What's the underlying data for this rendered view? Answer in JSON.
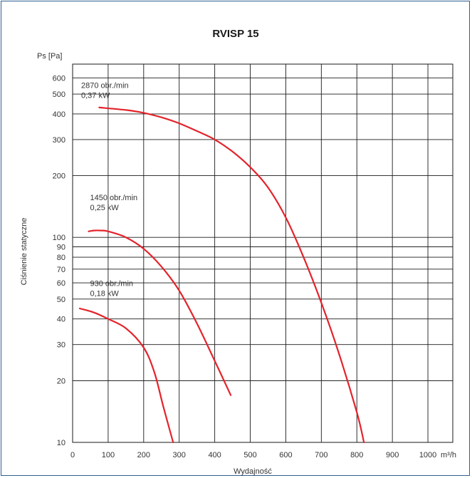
{
  "chart_data": {
    "type": "line",
    "title": "RVISP 15",
    "xlabel": "Wydajność",
    "ylabel": "Ciśnienie statyczne",
    "y_unit_label": "Ps [Pa]",
    "x_unit_label": "m³/h",
    "x_scale": "linear",
    "y_scale": "log",
    "xlim": [
      0,
      1070
    ],
    "ylim": [
      10,
      700
    ],
    "grid": true,
    "line_color": "#e3242b",
    "grid_color": "#1a1a1a",
    "x_ticks": [
      {
        "v": 0,
        "label": "0"
      },
      {
        "v": 100,
        "label": "100"
      },
      {
        "v": 200,
        "label": "200"
      },
      {
        "v": 300,
        "label": "300"
      },
      {
        "v": 400,
        "label": "400"
      },
      {
        "v": 500,
        "label": "500"
      },
      {
        "v": 600,
        "label": "600"
      },
      {
        "v": 700,
        "label": "700"
      },
      {
        "v": 800,
        "label": "800"
      },
      {
        "v": 900,
        "label": "900"
      },
      {
        "v": 1000,
        "label": "1000"
      }
    ],
    "y_ticks": [
      {
        "v": 10,
        "label": "10"
      },
      {
        "v": 20,
        "label": "20"
      },
      {
        "v": 30,
        "label": "30"
      },
      {
        "v": 40,
        "label": "40"
      },
      {
        "v": 50,
        "label": "50"
      },
      {
        "v": 60,
        "label": "60"
      },
      {
        "v": 70,
        "label": "70"
      },
      {
        "v": 80,
        "label": "80"
      },
      {
        "v": 90,
        "label": "90"
      },
      {
        "v": 100,
        "label": "100"
      },
      {
        "v": 200,
        "label": "200"
      },
      {
        "v": 300,
        "label": "300"
      },
      {
        "v": 400,
        "label": "400"
      },
      {
        "v": 500,
        "label": "500"
      },
      {
        "v": 600,
        "label": "600"
      }
    ],
    "series": [
      {
        "label_line1": "2870 obr./min",
        "label_line2": "0,37 kW",
        "label_at": [
          0,
          535
        ],
        "x": [
          75,
          150,
          200,
          250,
          300,
          350,
          400,
          450,
          500,
          550,
          600,
          650,
          700,
          750,
          800,
          820
        ],
        "y": [
          430,
          418,
          405,
          385,
          360,
          330,
          300,
          262,
          220,
          175,
          125,
          80,
          48,
          27,
          14,
          10
        ]
      },
      {
        "label_line1": "1450 obr./min",
        "label_line2": "0,25 kW",
        "label_at": [
          25,
          152
        ],
        "x": [
          45,
          60,
          80,
          100,
          150,
          200,
          250,
          300,
          350,
          400,
          445
        ],
        "y": [
          107,
          108,
          108,
          107,
          100,
          88,
          72,
          55,
          38,
          25,
          17
        ]
      },
      {
        "label_line1": "930 obr./min",
        "label_line2": "0,18 kW",
        "label_at": [
          25,
          58
        ],
        "x": [
          20,
          60,
          100,
          150,
          200,
          230,
          255,
          283
        ],
        "y": [
          45,
          43,
          40,
          36,
          29,
          22,
          15,
          10
        ]
      }
    ]
  }
}
